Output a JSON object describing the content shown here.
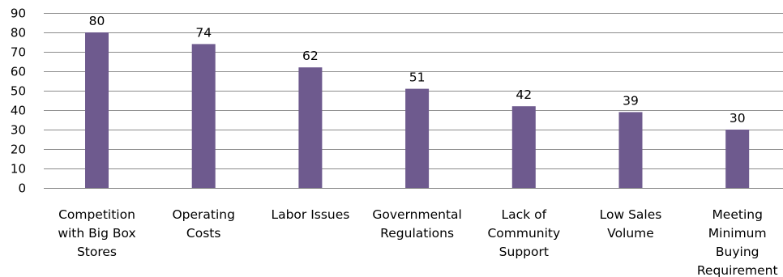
{
  "chart_data": {
    "type": "bar",
    "categories": [
      "Competition with Big Box Stores",
      "Operating Costs",
      "Labor Issues",
      "Governmental Regulations",
      "Lack of Community Support",
      "Low Sales Volume",
      "Meeting Minimum Buying Requirement"
    ],
    "category_lines": [
      [
        "Competition",
        "with Big Box",
        "Stores"
      ],
      [
        "Operating",
        "Costs"
      ],
      [
        "Labor Issues"
      ],
      [
        "Governmental",
        "Regulations"
      ],
      [
        "Lack of",
        "Community",
        "Support"
      ],
      [
        "Low Sales",
        "Volume"
      ],
      [
        "Meeting",
        "Minimum",
        "Buying",
        "Requirement"
      ]
    ],
    "values": [
      80,
      74,
      62,
      51,
      42,
      39,
      30
    ],
    "data_labels": [
      "80",
      "74",
      "62",
      "51",
      "42",
      "39",
      "30"
    ],
    "yticks": [
      "0",
      "10",
      "20",
      "30",
      "40",
      "50",
      "60",
      "70",
      "80",
      "90"
    ],
    "ylim": [
      0,
      90
    ],
    "grid": true,
    "legend": "none",
    "title": "",
    "xlabel": "",
    "ylabel": "",
    "colors": {
      "bar": "#6e5a8e"
    }
  }
}
